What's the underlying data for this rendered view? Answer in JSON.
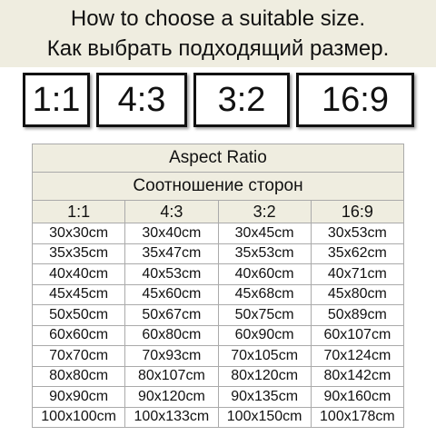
{
  "header": {
    "lines": [
      "How to choose a suitable size.",
      "Как выбрать подходящий размер."
    ]
  },
  "ratios": [
    "1:1",
    "4:3",
    "3:2",
    "16:9"
  ],
  "table": {
    "title": [
      "Aspect Ratio",
      "Соотношение сторон"
    ],
    "columns": [
      "1:1",
      "4:3",
      "3:2",
      "16:9"
    ],
    "rows": [
      [
        "30x30cm",
        "30x40cm",
        "30x45cm",
        "30x53cm"
      ],
      [
        "35x35cm",
        "35x47cm",
        "35x53cm",
        "35x62cm"
      ],
      [
        "40x40cm",
        "40x53cm",
        "40x60cm",
        "40x71cm"
      ],
      [
        "45x45cm",
        "45x60cm",
        "45x68cm",
        "45x80cm"
      ],
      [
        "50x50cm",
        "50x67cm",
        "50x75cm",
        "50x89cm"
      ],
      [
        "60x60cm",
        "60x80cm",
        "60x90cm",
        "60x107cm"
      ],
      [
        "70x70cm",
        "70x93cm",
        "70x105cm",
        "70x124cm"
      ],
      [
        "80x80cm",
        "80x107cm",
        "80x120cm",
        "80x142cm"
      ],
      [
        "90x90cm",
        "90x120cm",
        "90x135cm",
        "90x160cm"
      ],
      [
        "100x100cm",
        "100x133cm",
        "100x150cm",
        "100x178cm"
      ]
    ]
  }
}
